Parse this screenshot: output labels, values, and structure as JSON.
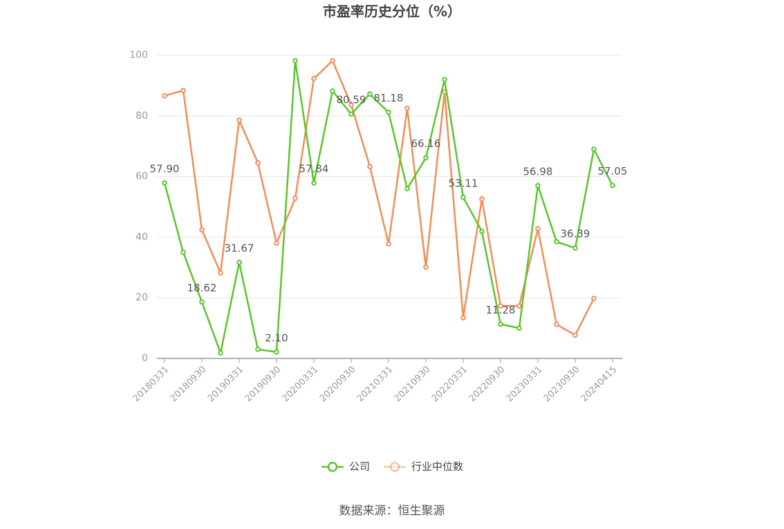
{
  "chart_data": {
    "type": "line",
    "title": "市盈率历史分位（%）",
    "categories": [
      "20180331",
      null,
      "20180930",
      null,
      "20190331",
      null,
      "20190930",
      null,
      "20200331",
      null,
      "20200930",
      null,
      "20210331",
      null,
      "20210930",
      null,
      "20220331",
      null,
      "20220930",
      null,
      "20230331",
      null,
      "20230930",
      null,
      "20240415"
    ],
    "series": [
      {
        "name": "公司",
        "color": "#5ac52b",
        "values": [
          57.9,
          35,
          18.62,
          1.8,
          31.67,
          3,
          2.1,
          98.2,
          57.84,
          88.2,
          80.59,
          87.2,
          81.18,
          56,
          66.16,
          92,
          53.11,
          41.9,
          11.28,
          10,
          56.98,
          38.5,
          36.39,
          69,
          57.05
        ],
        "value_labels": [
          "57.90",
          null,
          "18.62",
          null,
          "31.67",
          null,
          "2.10",
          null,
          "57.84",
          null,
          "80.59",
          null,
          "81.18",
          null,
          "66.16",
          null,
          "53.11",
          null,
          "11.28",
          null,
          "56.98",
          null,
          "36.39",
          null,
          "57.05"
        ]
      },
      {
        "name": "行业中位数",
        "color": "#f28c57",
        "values": [
          86.6,
          88.4,
          42.4,
          28.2,
          78.6,
          64.5,
          38,
          52.8,
          92.3,
          98.2,
          83.6,
          63.3,
          37.8,
          82.5,
          30.1,
          87.9,
          13.4,
          52.6,
          17.3,
          17.3,
          42.8,
          11.2,
          7.7,
          19.8,
          null
        ]
      }
    ],
    "ylim": [
      0,
      100
    ],
    "yticks": [
      0,
      20,
      40,
      60,
      80,
      100
    ],
    "grid": true,
    "legend": "bottom",
    "source": "数据来源：恒生聚源"
  }
}
